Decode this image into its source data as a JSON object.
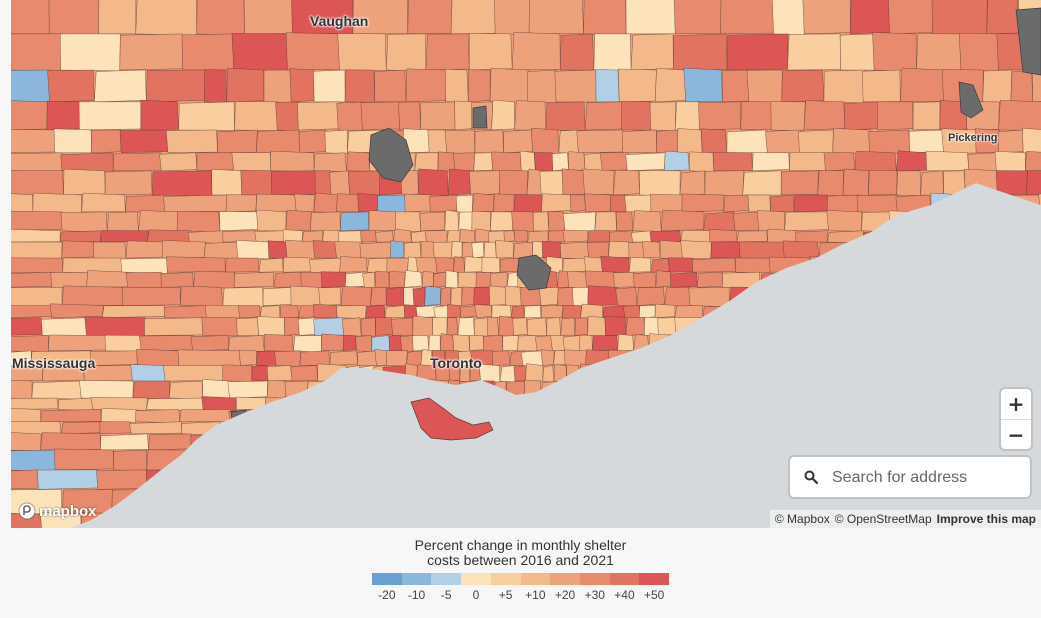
{
  "map": {
    "places": [
      {
        "name": "Vaughan",
        "size": "big"
      },
      {
        "name": "Pickering",
        "size": "small"
      },
      {
        "name": "Mississauga",
        "size": "big"
      },
      {
        "name": "Toronto",
        "size": "big"
      }
    ],
    "colors": {
      "water": "#d5d9dc",
      "no_data": "#6b6b6b",
      "boundary": "#5a3a30"
    },
    "zoom_in_label": "+",
    "zoom_out_label": "−",
    "search_placeholder": "Search for address",
    "logo_text": "mapbox",
    "attribution": {
      "mapbox": "© Mapbox",
      "osm": "© OpenStreetMap",
      "improve": "Improve this map"
    }
  },
  "legend": {
    "title_line1": "Percent change in monthly shelter",
    "title_line2": "costs between 2016 and 2021",
    "colors": [
      "#6a9fd3",
      "#8cb7dd",
      "#b1d0e6",
      "#fce3b9",
      "#f9cf9f",
      "#f3b98a",
      "#eea27b",
      "#e88a6d",
      "#e27360",
      "#dc5656"
    ],
    "ticks": [
      "-20",
      "-10",
      "-5",
      "0",
      "+5",
      "+10",
      "+20",
      "+30",
      "+40",
      "+50"
    ]
  }
}
